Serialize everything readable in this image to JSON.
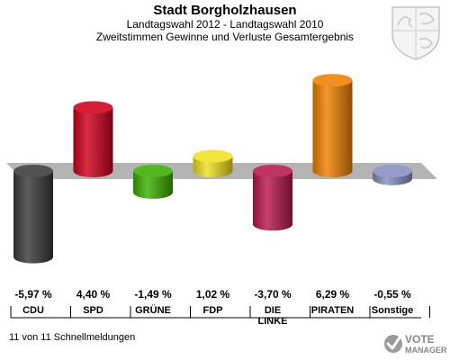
{
  "header": {
    "title": "Stadt Borgholzhausen",
    "subtitle": "Landtagswahl 2012 - Landtagswahl 2010",
    "description": "Zweitstimmen Gewinne und Verluste Gesamtergebnis"
  },
  "footer": {
    "status": "11 von 11 Schnellmeldungen",
    "logo_line1": "VOTE",
    "logo_line2": "MANAGER"
  },
  "chart_data": {
    "type": "bar",
    "categories": [
      "CDU",
      "SPD",
      "GRÜNE",
      "FDP",
      "DIE LINKE",
      "PIRATEN",
      "Sonstige"
    ],
    "values": [
      -5.97,
      4.4,
      -1.49,
      1.02,
      -3.7,
      6.29,
      -0.55
    ],
    "value_labels": [
      "-5,97 %",
      "4,40 %",
      "-1,49 %",
      "1,02 %",
      "-3,70 %",
      "6,29 %",
      "-0,55 %"
    ],
    "colors": [
      "#3a3a3a",
      "#d0001c",
      "#3cae00",
      "#f0e020",
      "#b8184c",
      "#f08000",
      "#8890c0"
    ],
    "ylim": [
      -7.3,
      7.3
    ],
    "grid": false,
    "legend": "none",
    "title": "",
    "xlabel": "",
    "ylabel": ""
  }
}
